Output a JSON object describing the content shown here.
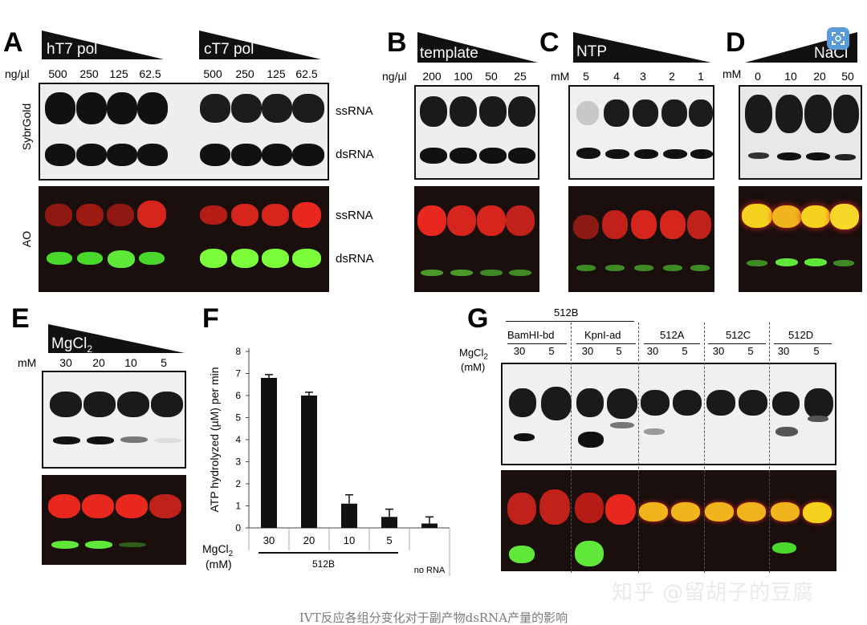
{
  "panels": {
    "A": {
      "letter": "A",
      "wedge1_label": "hT7 pol",
      "wedge2_label": "cT7 pol",
      "unit": "ng/µl",
      "lanes1": [
        "500",
        "250",
        "125",
        "62.5"
      ],
      "lanes2": [
        "500",
        "250",
        "125",
        "62.5"
      ],
      "stain_top": "SybrGold",
      "stain_bottom": "AO",
      "band_top_1": "ssRNA",
      "band_top_2": "dsRNA",
      "band_bottom_1": "ssRNA",
      "band_bottom_2": "dsRNA"
    },
    "B": {
      "letter": "B",
      "wedge_label": "template",
      "unit": "ng/µl",
      "lanes": [
        "200",
        "100",
        "50",
        "25"
      ]
    },
    "C": {
      "letter": "C",
      "wedge_label": "NTP",
      "unit": "mM",
      "lanes": [
        "5",
        "4",
        "3",
        "2",
        "1"
      ]
    },
    "D": {
      "letter": "D",
      "wedge_label": "NaCl",
      "unit": "mM",
      "lanes": [
        "0",
        "10",
        "20",
        "50"
      ]
    },
    "E": {
      "letter": "E",
      "wedge_label": "MgCl",
      "wedge_sub": "2",
      "unit": "mM",
      "lanes": [
        "30",
        "20",
        "10",
        "5"
      ]
    },
    "F": {
      "letter": "F",
      "mg_label": "MgCl",
      "mg_sub": "2",
      "mg_unit": "(mM)",
      "group_label": "512B",
      "norna_label": "no RNA"
    },
    "G": {
      "letter": "G",
      "group_label": "512B",
      "sub_labels": [
        "BamHI-bd",
        "KpnI-ad",
        "512A",
        "512C",
        "512D"
      ],
      "lane_values": [
        "30",
        "5",
        "30",
        "5",
        "30",
        "5",
        "30",
        "5",
        "30",
        "5"
      ],
      "mg_label": "MgCl",
      "mg_sub": "2",
      "mg_unit": "(mM)"
    }
  },
  "chart_data": {
    "type": "bar",
    "ylabel": "ATP hydrolyzed (µM) per min",
    "categories": [
      "30",
      "20",
      "10",
      "5",
      "no RNA"
    ],
    "values": [
      6.8,
      6.0,
      1.1,
      0.5,
      0.2
    ],
    "errors": [
      0.15,
      0.15,
      0.4,
      0.35,
      0.3
    ],
    "ylim": [
      0,
      8
    ],
    "yticks": [
      "0",
      "1",
      "2",
      "3",
      "4",
      "5",
      "6",
      "7",
      "8"
    ],
    "bar_color": "#111111"
  },
  "caption": "IVT反应各组分变化对于副产物dsRNA产量的影响",
  "watermark": "知乎 @留胡子的豆腐",
  "colors": {
    "red_band": "#e8281e",
    "green_band": "#5fe83a",
    "yellow_band": "#f5d21e",
    "dark_gel": "#1a0f0d",
    "light_gel": "#eeeeee"
  }
}
